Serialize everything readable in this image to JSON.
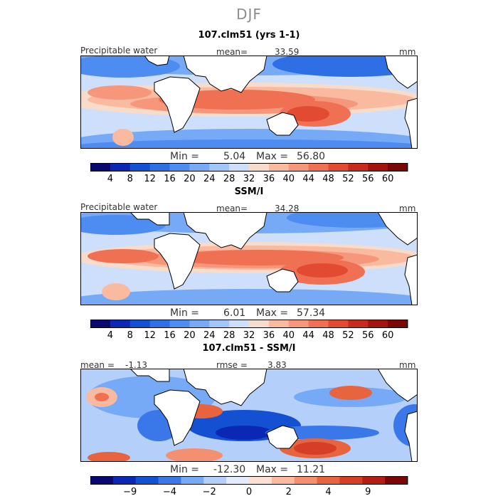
{
  "figure": {
    "season": "DJF"
  },
  "panels": [
    {
      "title": "107.clm51 (yrs 1-1)",
      "left_label": "Precipitable water",
      "mean_label": "mean=",
      "mean_value": "33.59",
      "units": "mm",
      "min_label": "Min =",
      "min_value": "5.04",
      "max_label": "Max =",
      "max_value": "56.80"
    },
    {
      "title": "SSM/I",
      "left_label": "Precipitable water",
      "mean_label": "mean=",
      "mean_value": "34.28",
      "units": "mm",
      "min_label": "Min =",
      "min_value": "6.01",
      "max_label": "Max =",
      "max_value": "57.34"
    },
    {
      "title": "107.clm51 - SSM/I",
      "left_label": "mean =",
      "mean_label": "rmse =",
      "mean_value": "3.83",
      "left_value": "-1.13",
      "units": "mm",
      "min_label": "Min =",
      "min_value": "-12.30",
      "max_label": "Max =",
      "max_value": "11.21"
    }
  ],
  "chart_data": [
    {
      "type": "heatmap",
      "title": "107.clm51 (yrs 1-1)",
      "variable": "Precipitable water",
      "units": "mm",
      "mean": 33.59,
      "min": 5.04,
      "max": 56.8,
      "colorbar_ticks": [
        "4",
        "8",
        "12",
        "16",
        "20",
        "24",
        "28",
        "32",
        "36",
        "40",
        "44",
        "48",
        "52",
        "56",
        "60"
      ],
      "colorbar_colors": [
        "#08086e",
        "#0a28b4",
        "#1450d2",
        "#2f6fe6",
        "#4d8cf0",
        "#77aaf6",
        "#a2c6fa",
        "#cddffb",
        "#f7dccb",
        "#f9baa0",
        "#f6967a",
        "#ef7052",
        "#e34a32",
        "#c82a1e",
        "#a3140f",
        "#7a0606"
      ]
    },
    {
      "type": "heatmap",
      "title": "SSM/I",
      "variable": "Precipitable water",
      "units": "mm",
      "mean": 34.28,
      "min": 6.01,
      "max": 57.34,
      "colorbar_ticks": [
        "4",
        "8",
        "12",
        "16",
        "20",
        "24",
        "28",
        "32",
        "36",
        "40",
        "44",
        "48",
        "52",
        "56",
        "60"
      ],
      "colorbar_colors": [
        "#08086e",
        "#0a28b4",
        "#1450d2",
        "#2f6fe6",
        "#4d8cf0",
        "#77aaf6",
        "#a2c6fa",
        "#cddffb",
        "#f7dccb",
        "#f9baa0",
        "#f6967a",
        "#ef7052",
        "#e34a32",
        "#c82a1e",
        "#a3140f",
        "#7a0606"
      ]
    },
    {
      "type": "heatmap",
      "title": "107.clm51 - SSM/I",
      "units": "mm",
      "mean": -1.13,
      "rmse": 3.83,
      "min": -12.3,
      "max": 11.21,
      "colorbar_ticks": [
        "-9",
        "-4",
        "-2",
        "0",
        "2",
        "4",
        "9"
      ],
      "colorbar_colors": [
        "#08086e",
        "#0a28b4",
        "#1450d2",
        "#3a78ea",
        "#77aaf6",
        "#b4d0fa",
        "#e2ecfc",
        "#fbe1d3",
        "#f9baa0",
        "#f3906f",
        "#e8643f",
        "#d63e27",
        "#b31d14",
        "#7a0606"
      ]
    }
  ]
}
